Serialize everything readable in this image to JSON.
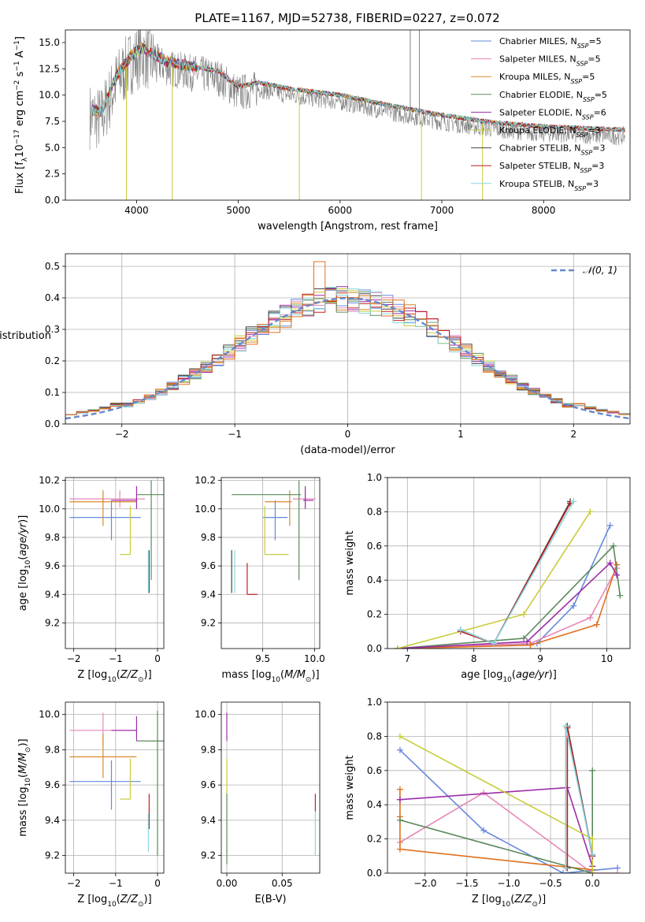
{
  "figure": {
    "title": "PLATE=1167, MJD=52738, FIBERID=0227, z=0.072"
  },
  "models": [
    {
      "name": "Chabrier MILES, N",
      "sub": "SSP",
      "suffix": "=5",
      "color": "#6688dd"
    },
    {
      "name": "Salpeter MILES, N",
      "sub": "SSP",
      "suffix": "=5",
      "color": "#e688b8"
    },
    {
      "name": "Kroupa MILES, N",
      "sub": "SSP",
      "suffix": "=5",
      "color": "#d88a2a"
    },
    {
      "name": "Chabrier ELODIE, N",
      "sub": "SSP",
      "suffix": "=5",
      "color": "#5b8a5b"
    },
    {
      "name": "Salpeter ELODIE, N",
      "sub": "SSP",
      "suffix": "=6",
      "color": "#9b2ea8"
    },
    {
      "name": "Kroupa ELODIE, N",
      "sub": "SSP",
      "suffix": "=3",
      "color": "#c8cc3a"
    },
    {
      "name": "Chabrier STELIB, N",
      "sub": "SSP",
      "suffix": "=3",
      "color": "#444444"
    },
    {
      "name": "Salpeter STELIB, N",
      "sub": "SSP",
      "suffix": "=3",
      "color": "#c02020"
    },
    {
      "name": "Kroupa STELIB, N",
      "sub": "SSP",
      "suffix": "=3",
      "color": "#88d8e0"
    }
  ],
  "chart_data": [
    {
      "id": "spectrum",
      "type": "line",
      "xlabel": "wavelength [Angstrom, rest frame]",
      "ylabel": "Flux [f_λ 10^-17 erg cm^-2 s^-1 A^-1]",
      "xlim": [
        3300,
        8850
      ],
      "ylim": [
        0,
        16.2
      ],
      "xticks": [
        4000,
        5000,
        6000,
        7000,
        8000
      ],
      "yticks": [
        0.0,
        2.5,
        5.0,
        7.5,
        10.0,
        12.5,
        15.0
      ],
      "observed_color": "#808080",
      "model_continuum_x": [
        3550,
        3650,
        3800,
        3950,
        4050,
        4300,
        4500,
        4800,
        5000,
        5200,
        5500,
        6000,
        6500,
        7000,
        7500,
        8000,
        8500,
        8800
      ],
      "model_continuum_y": [
        8.6,
        8.3,
        11.8,
        13.8,
        14.5,
        13.2,
        12.8,
        12.3,
        10.8,
        11.2,
        10.6,
        10.0,
        9.0,
        8.1,
        7.4,
        7.0,
        6.8,
        6.7
      ],
      "spikes": [
        {
          "x": 3900,
          "y": 0.0
        },
        {
          "x": 4350,
          "y": 0.0
        },
        {
          "x": 5600,
          "y": 0.0
        },
        {
          "x": 6800,
          "y": 0.0
        },
        {
          "x": 7400,
          "y": 0.0
        }
      ]
    },
    {
      "id": "residuals",
      "type": "histogram",
      "xlabel": "(data-model)/error",
      "ylabel": "Normed distribution",
      "xlim": [
        -2.5,
        2.5
      ],
      "ylim": [
        0,
        0.54
      ],
      "xticks": [
        -2,
        -1,
        0,
        1,
        2
      ],
      "yticks": [
        0.0,
        0.1,
        0.2,
        0.3,
        0.4,
        0.5
      ],
      "legend": "𝒩(0, 1)",
      "bin_width": 0.1,
      "bin_start": -2.5
    },
    {
      "id": "age-Z",
      "type": "errorbar",
      "xlabel": "Z [log10(Z/Z⊙)]",
      "ylabel": "age [log10(age/yr)]",
      "xlim": [
        -2.2,
        0.15
      ],
      "ylim": [
        9.02,
        10.22
      ],
      "xticks": [
        -2,
        -1,
        0
      ],
      "yticks": [
        9.2,
        9.4,
        9.6,
        9.8,
        10.0,
        10.2
      ],
      "points": [
        {
          "model": 0,
          "x": -1.1,
          "xerr": [
            1.0,
            0.7
          ],
          "y": 9.94,
          "yerr": [
            0.16,
            0.12
          ]
        },
        {
          "model": 1,
          "x": -0.9,
          "xerr": [
            1.2,
            0.6
          ],
          "y": 10.07,
          "yerr": [
            0.06,
            0.06
          ]
        },
        {
          "model": 2,
          "x": -1.3,
          "xerr": [
            0.8,
            0.8
          ],
          "y": 10.05,
          "yerr": [
            0.17,
            0.08
          ]
        },
        {
          "model": 3,
          "x": -0.15,
          "xerr": [
            0.35,
            0.35
          ],
          "y": 10.1,
          "yerr": [
            0.6,
            0.1
          ]
        },
        {
          "model": 4,
          "x": -0.5,
          "xerr": [
            0.6,
            0.0
          ],
          "y": 10.06,
          "yerr": [
            0.06,
            0.1
          ]
        },
        {
          "model": 5,
          "x": -0.65,
          "xerr": [
            0.25,
            0.0
          ],
          "y": 9.68,
          "yerr": [
            0.0,
            0.34
          ]
        },
        {
          "model": 6,
          "x": -0.2,
          "xerr": [
            0.0,
            0.0
          ],
          "y": 9.41,
          "yerr": [
            0.0,
            0.3
          ]
        },
        {
          "model": 7,
          "x": -0.2,
          "xerr": [
            0.0,
            0.0
          ],
          "y": 9.41,
          "yerr": [
            0.0,
            0.0
          ]
        },
        {
          "model": 8,
          "x": -0.22,
          "xerr": [
            0.0,
            0.0
          ],
          "y": 9.41,
          "yerr": [
            0.0,
            0.3
          ]
        }
      ]
    },
    {
      "id": "age-mass",
      "type": "errorbar",
      "xlabel": "mass [log10(M/M⊙)]",
      "ylabel": "",
      "xlim": [
        9.1,
        10.05
      ],
      "ylim": [
        9.02,
        10.22
      ],
      "xticks": [
        9.5,
        10.0
      ],
      "yticks": [
        9.2,
        9.4,
        9.6,
        9.8,
        10.0,
        10.2
      ],
      "points": [
        {
          "model": 0,
          "x": 9.62,
          "xerr": [
            0.12,
            0.12
          ],
          "y": 9.94,
          "yerr": [
            0.16,
            0.12
          ]
        },
        {
          "model": 1,
          "x": 9.91,
          "xerr": [
            0.12,
            0.1
          ],
          "y": 10.07,
          "yerr": [
            0.06,
            0.06
          ]
        },
        {
          "model": 2,
          "x": 9.76,
          "xerr": [
            0.24,
            0.02
          ],
          "y": 10.05,
          "yerr": [
            0.17,
            0.08
          ]
        },
        {
          "model": 3,
          "x": 9.85,
          "xerr": [
            0.65,
            0.02
          ],
          "y": 10.1,
          "yerr": [
            0.6,
            0.1
          ]
        },
        {
          "model": 4,
          "x": 9.91,
          "xerr": [
            0.02,
            0.08
          ],
          "y": 10.06,
          "yerr": [
            0.06,
            0.1
          ]
        },
        {
          "model": 5,
          "x": 9.52,
          "xerr": [
            0.0,
            0.23
          ],
          "y": 9.68,
          "yerr": [
            0.0,
            0.34
          ]
        },
        {
          "model": 6,
          "x": 9.2,
          "xerr": [
            0.0,
            0.0
          ],
          "y": 9.41,
          "yerr": [
            0.0,
            0.3
          ]
        },
        {
          "model": 7,
          "x": 9.35,
          "xerr": [
            0.0,
            0.1
          ],
          "y": 9.4,
          "yerr": [
            0.0,
            0.22
          ]
        },
        {
          "model": 8,
          "x": 9.23,
          "xerr": [
            0.0,
            0.0
          ],
          "y": 9.41,
          "yerr": [
            0.0,
            0.3
          ]
        }
      ]
    },
    {
      "id": "weight-age",
      "type": "line",
      "xlabel": "age [log10(age/yr)]",
      "ylabel": "mass weight",
      "xlim": [
        6.7,
        10.35
      ],
      "ylim": [
        0,
        1.0
      ],
      "xticks": [
        7,
        8,
        9,
        10
      ],
      "yticks": [
        0.0,
        0.2,
        0.4,
        0.6,
        0.8,
        1.0
      ],
      "series": [
        {
          "model": 0,
          "x": [
            6.85,
            8.95,
            9.5,
            10.05
          ],
          "y": [
            0.0,
            0.03,
            0.25,
            0.72
          ]
        },
        {
          "model": 1,
          "x": [
            6.85,
            8.85,
            9.75,
            10.15
          ],
          "y": [
            0.0,
            0.03,
            0.18,
            0.47
          ]
        },
        {
          "model": 2,
          "x": [
            6.85,
            8.85,
            9.85,
            10.15
          ],
          "y": [
            0.0,
            0.02,
            0.14,
            0.49
          ]
        },
        {
          "model": 3,
          "x": [
            6.85,
            8.75,
            10.1,
            10.2
          ],
          "y": [
            0.0,
            0.06,
            0.6,
            0.31
          ]
        },
        {
          "model": 4,
          "x": [
            6.85,
            8.8,
            10.05,
            10.15
          ],
          "y": [
            0.0,
            0.04,
            0.5,
            0.43
          ]
        },
        {
          "model": 5,
          "x": [
            6.85,
            8.75,
            9.75
          ],
          "y": [
            0.0,
            0.2,
            0.8
          ]
        },
        {
          "model": 6,
          "x": [
            7.8,
            8.3,
            9.45
          ],
          "y": [
            0.11,
            0.03,
            0.86
          ]
        },
        {
          "model": 7,
          "x": [
            7.8,
            8.3,
            9.45
          ],
          "y": [
            0.1,
            0.03,
            0.85
          ]
        },
        {
          "model": 8,
          "x": [
            7.8,
            8.3,
            9.5
          ],
          "y": [
            0.11,
            0.03,
            0.86
          ]
        }
      ]
    },
    {
      "id": "mass-Z",
      "type": "errorbar",
      "xlabel": "Z [log10(Z/Z⊙)]",
      "ylabel": "mass [log10(M/M⊙)]",
      "xlim": [
        -2.2,
        0.15
      ],
      "ylim": [
        9.1,
        10.07
      ],
      "xticks": [
        -2,
        -1,
        0
      ],
      "yticks": [
        9.2,
        9.4,
        9.6,
        9.8,
        10.0
      ],
      "points": [
        {
          "model": 0,
          "x": -1.1,
          "xerr": [
            1.0,
            0.7
          ],
          "y": 9.62,
          "yerr": [
            0.16,
            0.12
          ]
        },
        {
          "model": 1,
          "x": -1.3,
          "xerr": [
            0.8,
            0.8
          ],
          "y": 9.91,
          "yerr": [
            0.09,
            0.1
          ]
        },
        {
          "model": 2,
          "x": -1.3,
          "xerr": [
            0.8,
            0.8
          ],
          "y": 9.76,
          "yerr": [
            0.12,
            0.13
          ]
        },
        {
          "model": 3,
          "x": 0.0,
          "xerr": [
            0.5,
            0.15
          ],
          "y": 9.85,
          "yerr": [
            0.65,
            0.17
          ]
        },
        {
          "model": 4,
          "x": -0.5,
          "xerr": [
            0.6,
            0.0
          ],
          "y": 9.91,
          "yerr": [
            0.06,
            0.08
          ]
        },
        {
          "model": 5,
          "x": -0.65,
          "xerr": [
            0.25,
            0.0
          ],
          "y": 9.52,
          "yerr": [
            0.0,
            0.23
          ]
        },
        {
          "model": 6,
          "x": -0.2,
          "xerr": [
            0.0,
            0.0
          ],
          "y": 9.2,
          "yerr": [
            0.0,
            0.0
          ]
        },
        {
          "model": 7,
          "x": -0.2,
          "xerr": [
            0.0,
            0.0
          ],
          "y": 9.35,
          "yerr": [
            0.0,
            0.2
          ]
        },
        {
          "model": 8,
          "x": -0.22,
          "xerr": [
            0.0,
            0.0
          ],
          "y": 9.22,
          "yerr": [
            0.0,
            0.22
          ]
        }
      ]
    },
    {
      "id": "mass-EBV",
      "type": "errorbar",
      "xlabel": "E(B-V)",
      "ylabel": "",
      "xlim": [
        -0.005,
        0.084
      ],
      "ylim": [
        9.1,
        10.07
      ],
      "xticks": [
        0.0,
        0.05
      ],
      "xticklabels": [
        "0.00",
        "0.05"
      ],
      "yticks": [
        9.2,
        9.4,
        9.6,
        9.8,
        10.0
      ],
      "points": [
        {
          "model": 4,
          "x": 0.0,
          "xerr": [
            0,
            0
          ],
          "y": 9.91,
          "yerr": [
            0.06,
            0.1
          ]
        },
        {
          "model": 5,
          "x": 0.0,
          "xerr": [
            0,
            0
          ],
          "y": 9.52,
          "yerr": [
            0.0,
            0.23
          ]
        },
        {
          "model": 3,
          "x": 0.0,
          "xerr": [
            0,
            0
          ],
          "y": 9.2,
          "yerr": [
            0.05,
            0.35
          ]
        },
        {
          "model": 7,
          "x": 0.08,
          "xerr": [
            0,
            0
          ],
          "y": 9.45,
          "yerr": [
            0.0,
            0.1
          ]
        },
        {
          "model": 8,
          "x": 0.08,
          "xerr": [
            0,
            0
          ],
          "y": 9.2,
          "yerr": [
            0.0,
            0.25
          ]
        }
      ]
    },
    {
      "id": "weight-Z",
      "type": "line",
      "xlabel": "Z [log10(Z/Z⊙)]",
      "ylabel": "mass weight",
      "xlim": [
        -2.45,
        0.45
      ],
      "ylim": [
        0,
        1.0
      ],
      "xticks": [
        -2.0,
        -1.5,
        -1.0,
        -0.5,
        0.0
      ],
      "xticklabels": [
        "−2.0",
        "−1.5",
        "−1.0",
        "−0.5",
        "0.0"
      ],
      "yticks": [
        0.0,
        0.2,
        0.4,
        0.6,
        0.8,
        1.0
      ],
      "series": [
        {
          "model": 0,
          "x": [
            -2.3,
            -1.3,
            -0.35,
            0.3
          ],
          "y": [
            0.72,
            0.25,
            0.0,
            0.03
          ]
        },
        {
          "model": 1,
          "x": [
            -2.3,
            -1.3,
            0.0,
            0.3
          ],
          "y": [
            0.18,
            0.47,
            0.0,
            0.0
          ]
        },
        {
          "model": 2,
          "x": [
            -2.3,
            -2.3,
            -2.3,
            0.0
          ],
          "y": [
            0.49,
            0.33,
            0.14,
            0.02
          ]
        },
        {
          "model": 3,
          "x": [
            -2.3,
            0.0,
            0.0
          ],
          "y": [
            0.31,
            0.0,
            0.6
          ]
        },
        {
          "model": 4,
          "x": [
            -2.3,
            -0.3,
            0.0
          ],
          "y": [
            0.43,
            0.5,
            0.04
          ]
        },
        {
          "model": 5,
          "x": [
            -2.3,
            0.0,
            0.0
          ],
          "y": [
            0.8,
            0.2,
            0.0
          ]
        },
        {
          "model": 6,
          "x": [
            -0.3,
            -0.3,
            0.0
          ],
          "y": [
            0.03,
            0.86,
            0.11
          ]
        },
        {
          "model": 7,
          "x": [
            -0.3,
            -0.3,
            0.0
          ],
          "y": [
            0.03,
            0.85,
            0.1
          ]
        },
        {
          "model": 8,
          "x": [
            -0.32,
            -0.32,
            0.0
          ],
          "y": [
            0.03,
            0.86,
            0.11
          ]
        }
      ]
    }
  ]
}
